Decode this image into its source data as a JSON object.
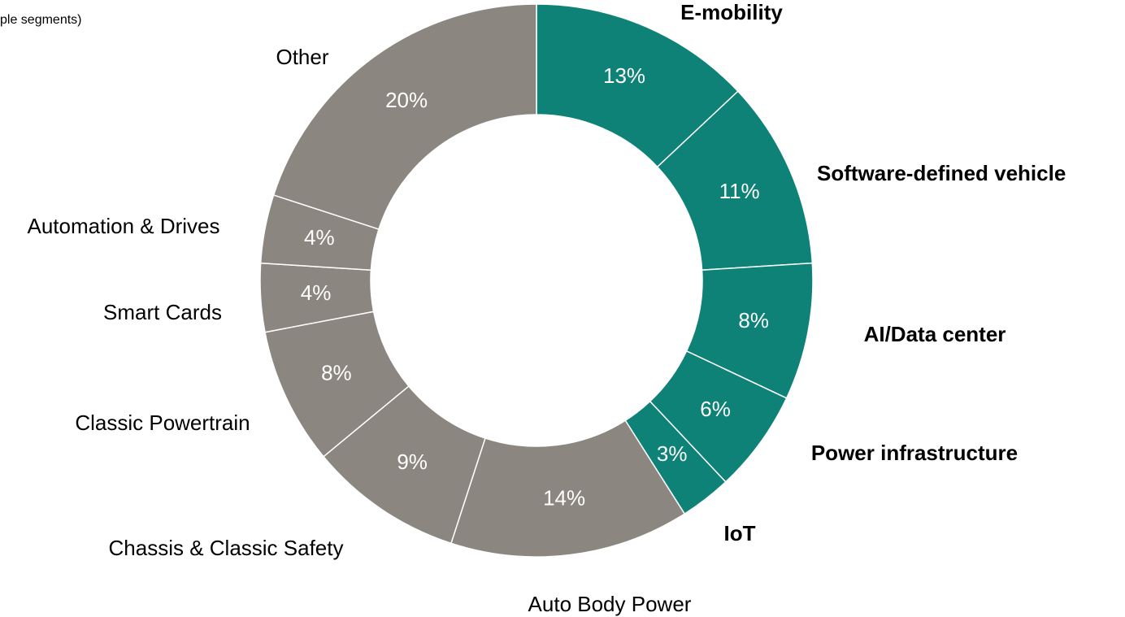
{
  "chart_data": {
    "type": "donut",
    "subtitle": "ple segments)",
    "categories": [
      "E-mobility",
      "Software-defined vehicle",
      "AI/Data center",
      "Power infrastructure",
      "IoT",
      "Auto Body Power",
      "Chassis & Classic Safety",
      "Classic Powertrain",
      "Smart Cards",
      "Automation & Drives",
      "Other"
    ],
    "values": [
      13,
      11,
      8,
      6,
      3,
      14,
      9,
      8,
      4,
      4,
      20
    ],
    "value_labels": [
      "13%",
      "11%",
      "8%",
      "6%",
      "3%",
      "14%",
      "9%",
      "8%",
      "4%",
      "4%",
      "20%"
    ],
    "colors": [
      "#0e8276",
      "#0e8276",
      "#0e8276",
      "#0e8276",
      "#0e8276",
      "#8c8680",
      "#8c8680",
      "#8c8680",
      "#8c8680",
      "#8c8680",
      "#8c8680"
    ]
  }
}
